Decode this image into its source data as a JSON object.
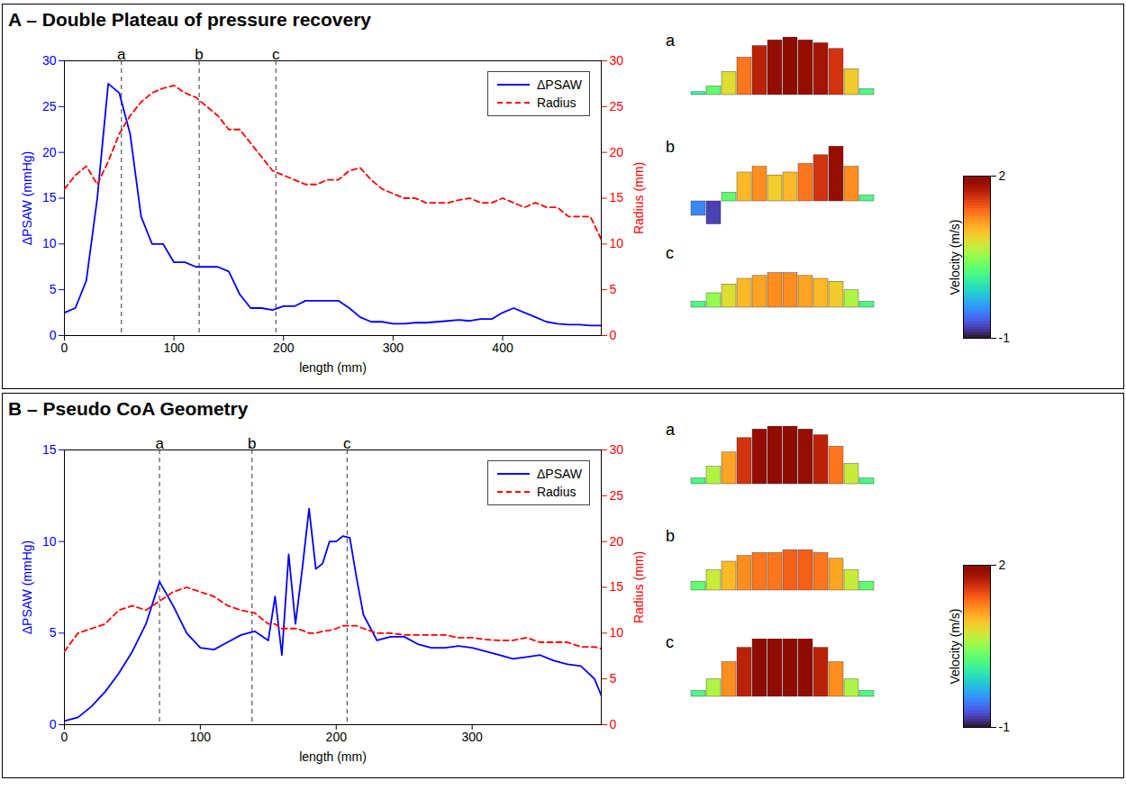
{
  "chart_data": [
    {
      "type": "line",
      "title": "A – Double Plateau of pressure recovery",
      "xlabel": "length (mm)",
      "ylabel": "ΔPSAW (mmHg)",
      "y2label": "Radius (mm)",
      "xlim": [
        0,
        490
      ],
      "xticks": [
        0,
        100,
        200,
        300,
        400
      ],
      "ylim": [
        0,
        30
      ],
      "yticks": [
        0,
        5,
        10,
        15,
        20,
        25,
        30
      ],
      "y2lim": [
        0,
        30
      ],
      "y2ticks": [
        0,
        5,
        10,
        15,
        20,
        25,
        30
      ],
      "grid": false,
      "legend": "upper right",
      "x": [
        0,
        10,
        20,
        30,
        40,
        50,
        60,
        70,
        80,
        90,
        100,
        110,
        120,
        130,
        140,
        150,
        160,
        170,
        180,
        190,
        200,
        210,
        220,
        230,
        240,
        250,
        260,
        270,
        280,
        290,
        300,
        310,
        320,
        330,
        340,
        350,
        360,
        370,
        380,
        390,
        400,
        410,
        420,
        430,
        440,
        450,
        460,
        470,
        480,
        490
      ],
      "series": [
        {
          "name": "ΔPSAW",
          "color": "#0000ff",
          "line_style": "solid",
          "axis": "y",
          "values": [
            2.5,
            3,
            6,
            15,
            27.5,
            26.5,
            22,
            13,
            10,
            10,
            8,
            8,
            7.5,
            7.5,
            7.5,
            7,
            4.5,
            3,
            3,
            2.8,
            3.2,
            3.2,
            3.8,
            3.8,
            3.8,
            3.8,
            3,
            2,
            1.5,
            1.5,
            1.3,
            1.3,
            1.4,
            1.4,
            1.5,
            1.6,
            1.7,
            1.6,
            1.8,
            1.8,
            2.5,
            3,
            2.5,
            2,
            1.5,
            1.3,
            1.2,
            1.2,
            1.1,
            1.1
          ]
        },
        {
          "name": "Radius",
          "color": "#ff0000",
          "line_style": "dashed",
          "axis": "y2",
          "values": [
            16,
            17.5,
            18.5,
            16.5,
            19,
            22,
            24,
            25.5,
            26.5,
            27,
            27.3,
            26.5,
            26,
            25,
            24,
            22.5,
            22.5,
            21,
            19.5,
            18,
            17.5,
            17,
            16.5,
            16.5,
            17,
            17,
            18,
            18.3,
            17,
            16,
            15.5,
            15,
            15,
            14.5,
            14.5,
            14.5,
            14.8,
            15,
            14.5,
            14.5,
            15,
            14.5,
            14,
            14.5,
            14,
            14,
            13,
            13,
            13,
            10.5
          ]
        }
      ],
      "markers": [
        {
          "label": "a",
          "x": 52
        },
        {
          "label": "b",
          "x": 123
        },
        {
          "label": "c",
          "x": 193
        }
      ],
      "profiles": {
        "type": "bar",
        "ylim": [
          -1,
          2
        ],
        "tick_labels": false,
        "items": [
          {
            "label": "a",
            "values": [
              0.1,
              0.3,
              0.8,
              1.3,
              1.7,
              1.9,
              2,
              1.9,
              1.8,
              1.6,
              0.9,
              0.2
            ]
          },
          {
            "label": "b",
            "values": [
              -0.5,
              -0.8,
              0.3,
              1,
              1.2,
              0.9,
              1,
              1.3,
              1.6,
              1.9,
              1.2,
              0.2
            ]
          },
          {
            "label": "c",
            "values": [
              0.2,
              0.5,
              0.8,
              1,
              1.1,
              1.2,
              1.2,
              1.1,
              1,
              0.9,
              0.6,
              0.2
            ]
          }
        ]
      },
      "colorbar": {
        "label": "Velocity (m/s)",
        "range": [
          -1,
          2
        ],
        "ticks": [
          -1,
          2
        ]
      }
    },
    {
      "type": "line",
      "title": "B – Pseudo CoA Geometry",
      "xlabel": "length (mm)",
      "ylabel": "ΔPSAW (mmHg)",
      "y2label": "Radius (mm)",
      "xlim": [
        0,
        395
      ],
      "xticks": [
        0,
        100,
        200,
        300
      ],
      "ylim": [
        0,
        15
      ],
      "yticks": [
        0,
        5,
        10,
        15
      ],
      "y2lim": [
        0,
        30
      ],
      "y2ticks": [
        0,
        5,
        10,
        15,
        20,
        25,
        30
      ],
      "grid": false,
      "legend": "upper right",
      "x": [
        0,
        10,
        20,
        30,
        40,
        50,
        60,
        70,
        80,
        90,
        100,
        110,
        120,
        130,
        140,
        150,
        155,
        160,
        165,
        170,
        175,
        180,
        185,
        190,
        195,
        200,
        205,
        210,
        215,
        220,
        230,
        240,
        250,
        260,
        270,
        280,
        290,
        300,
        310,
        320,
        330,
        340,
        350,
        360,
        370,
        380,
        390,
        395
      ],
      "series": [
        {
          "name": "ΔPSAW",
          "color": "#0000ff",
          "line_style": "solid",
          "axis": "y",
          "values": [
            0.2,
            0.4,
            1,
            1.8,
            2.8,
            4,
            5.5,
            7.8,
            6.5,
            5,
            4.2,
            4.1,
            4.5,
            4.9,
            5.1,
            4.6,
            7,
            3.8,
            9.3,
            5.5,
            8.5,
            11.8,
            8.5,
            8.8,
            10,
            10,
            10.3,
            10.2,
            8,
            6,
            4.6,
            4.8,
            4.8,
            4.4,
            4.2,
            4.2,
            4.3,
            4.2,
            4,
            3.8,
            3.6,
            3.7,
            3.8,
            3.5,
            3.3,
            3.2,
            2.5,
            1.6
          ]
        },
        {
          "name": "Radius",
          "color": "#ff0000",
          "line_style": "dashed",
          "axis": "y2",
          "values": [
            8,
            10,
            10.5,
            11,
            12.5,
            13,
            12.5,
            13.5,
            14.5,
            15,
            14.5,
            14,
            13,
            12.5,
            12.2,
            11,
            11,
            10.5,
            10.5,
            10.5,
            10.3,
            10,
            10,
            10.2,
            10.3,
            10.5,
            10.8,
            10.8,
            10.8,
            10.5,
            10,
            10,
            9.8,
            9.8,
            9.8,
            9.8,
            9.5,
            9.5,
            9.3,
            9.2,
            9.2,
            9.5,
            9,
            9,
            9,
            8.5,
            8.5,
            8.3
          ]
        }
      ],
      "markers": [
        {
          "label": "a",
          "x": 70
        },
        {
          "label": "b",
          "x": 138
        },
        {
          "label": "c",
          "x": 208
        }
      ],
      "profiles": {
        "type": "bar",
        "ylim": [
          -1,
          2
        ],
        "tick_labels": false,
        "items": [
          {
            "label": "a",
            "values": [
              0.2,
              0.6,
              1.1,
              1.6,
              1.9,
              2,
              2,
              1.9,
              1.7,
              1.3,
              0.7,
              0.2
            ]
          },
          {
            "label": "b",
            "values": [
              0.3,
              0.7,
              1,
              1.2,
              1.3,
              1.3,
              1.4,
              1.4,
              1.3,
              1.1,
              0.7,
              0.3
            ]
          },
          {
            "label": "c",
            "values": [
              0.2,
              0.6,
              1.2,
              1.7,
              2,
              2,
              2,
              2,
              1.7,
              1.2,
              0.6,
              0.2
            ]
          }
        ]
      },
      "colorbar": {
        "label": "Velocity (m/s)",
        "range": [
          -1,
          2
        ],
        "ticks": [
          -1,
          2
        ]
      }
    }
  ]
}
